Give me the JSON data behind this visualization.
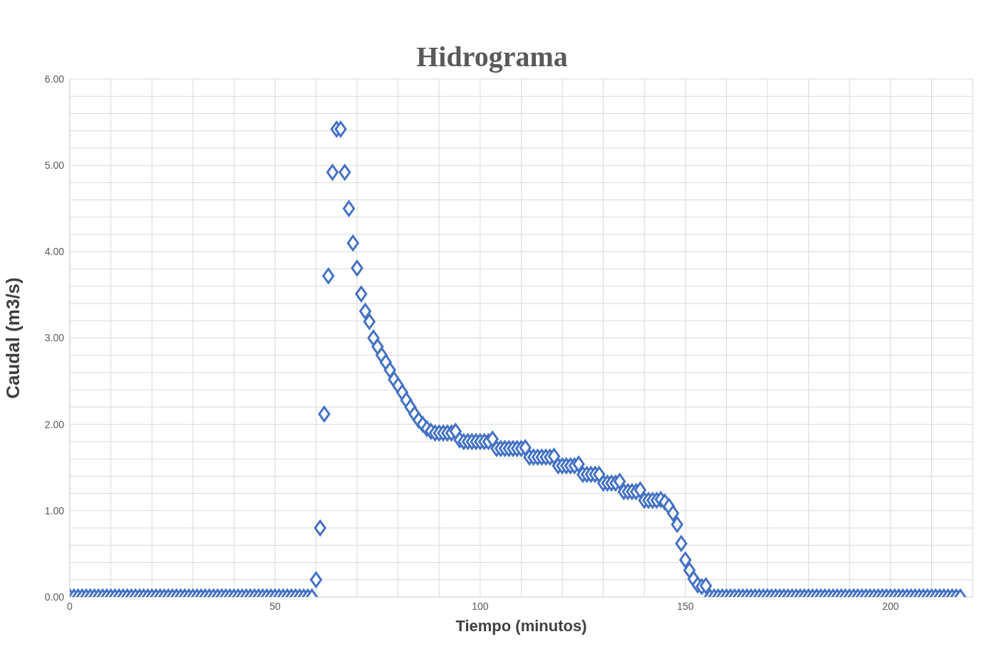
{
  "chart_data": {
    "type": "scatter",
    "title": "Hidrograma",
    "xlabel": "Tiempo (minutos)",
    "ylabel": "Caudal (m3/s)",
    "x": [
      0,
      1,
      2,
      3,
      4,
      5,
      6,
      7,
      8,
      9,
      10,
      11,
      12,
      13,
      14,
      15,
      16,
      17,
      18,
      19,
      20,
      21,
      22,
      23,
      24,
      25,
      26,
      27,
      28,
      29,
      30,
      31,
      32,
      33,
      34,
      35,
      36,
      37,
      38,
      39,
      40,
      41,
      42,
      43,
      44,
      45,
      46,
      47,
      48,
      49,
      50,
      51,
      52,
      53,
      54,
      55,
      56,
      57,
      58,
      59,
      60,
      61,
      62,
      63,
      64,
      65,
      66,
      67,
      68,
      69,
      70,
      71,
      72,
      73,
      74,
      75,
      76,
      77,
      78,
      79,
      80,
      81,
      82,
      83,
      84,
      85,
      86,
      87,
      88,
      89,
      90,
      91,
      92,
      93,
      94,
      95,
      96,
      97,
      98,
      99,
      100,
      101,
      102,
      103,
      104,
      105,
      106,
      107,
      108,
      109,
      110,
      111,
      112,
      113,
      114,
      115,
      116,
      117,
      118,
      119,
      120,
      121,
      122,
      123,
      124,
      125,
      126,
      127,
      128,
      129,
      130,
      131,
      132,
      133,
      134,
      135,
      136,
      137,
      138,
      139,
      140,
      141,
      142,
      143,
      144,
      145,
      146,
      147,
      148,
      149,
      150,
      151,
      152,
      153,
      154,
      155,
      156,
      157,
      158,
      159,
      160,
      161,
      162,
      163,
      164,
      165,
      166,
      167,
      168,
      169,
      170,
      171,
      172,
      173,
      174,
      175,
      176,
      177,
      178,
      179,
      180,
      181,
      182,
      183,
      184,
      185,
      186,
      187,
      188,
      189,
      190,
      191,
      192,
      193,
      194,
      195,
      196,
      197,
      198,
      199,
      200,
      201,
      202,
      203,
      204,
      205,
      206,
      207,
      208,
      209,
      210,
      211,
      212,
      213,
      214,
      215,
      216,
      217
    ],
    "series": [
      {
        "color": "#4472c4",
        "values": [
          0,
          0,
          0,
          0,
          0,
          0,
          0,
          0,
          0,
          0,
          0,
          0,
          0,
          0,
          0,
          0,
          0,
          0,
          0,
          0,
          0,
          0,
          0,
          0,
          0,
          0,
          0,
          0,
          0,
          0,
          0,
          0,
          0,
          0,
          0,
          0,
          0,
          0,
          0,
          0,
          0,
          0,
          0,
          0,
          0,
          0,
          0,
          0,
          0,
          0,
          0,
          0,
          0,
          0,
          0,
          0,
          0,
          0,
          0,
          0,
          0.2,
          0.8,
          2.12,
          3.72,
          4.92,
          5.42,
          5.42,
          4.92,
          4.5,
          4.1,
          3.81,
          3.51,
          3.31,
          3.19,
          3.0,
          2.9,
          2.8,
          2.72,
          2.63,
          2.52,
          2.45,
          2.37,
          2.28,
          2.2,
          2.12,
          2.05,
          2.0,
          1.95,
          1.92,
          1.9,
          1.9,
          1.9,
          1.9,
          1.9,
          1.92,
          1.82,
          1.8,
          1.8,
          1.8,
          1.8,
          1.8,
          1.8,
          1.8,
          1.83,
          1.72,
          1.72,
          1.72,
          1.72,
          1.72,
          1.72,
          1.72,
          1.73,
          1.62,
          1.62,
          1.62,
          1.62,
          1.62,
          1.62,
          1.63,
          1.52,
          1.52,
          1.52,
          1.52,
          1.52,
          1.54,
          1.42,
          1.42,
          1.42,
          1.42,
          1.42,
          1.32,
          1.32,
          1.32,
          1.32,
          1.34,
          1.22,
          1.22,
          1.22,
          1.22,
          1.24,
          1.12,
          1.12,
          1.12,
          1.12,
          1.13,
          1.1,
          1.05,
          0.97,
          0.84,
          0.62,
          0.43,
          0.31,
          0.21,
          0.14,
          0.12,
          0.13,
          0,
          0,
          0,
          0,
          0,
          0,
          0,
          0,
          0,
          0,
          0,
          0,
          0,
          0,
          0,
          0,
          0,
          0,
          0,
          0,
          0,
          0,
          0,
          0,
          0,
          0,
          0,
          0,
          0,
          0,
          0,
          0,
          0,
          0,
          0,
          0,
          0,
          0,
          0,
          0,
          0,
          0,
          0,
          0,
          0,
          0,
          0,
          0,
          0,
          0,
          0,
          0,
          0,
          0,
          0,
          0,
          0,
          0,
          0,
          0,
          0,
          0
        ]
      }
    ],
    "xlim": [
      0,
      220
    ],
    "xticks": [
      0,
      {
        "value": 10,
        "label": null
      },
      {
        "value": 20,
        "label": null
      },
      {
        "value": 30,
        "label": null
      },
      {
        "value": 40,
        "label": null
      },
      50,
      {
        "value": 60,
        "label": null
      },
      {
        "value": 70,
        "label": null
      },
      {
        "value": 80,
        "label": null
      },
      {
        "value": 90,
        "label": null
      },
      100,
      {
        "value": 110,
        "label": null
      },
      {
        "value": 120,
        "label": null
      },
      {
        "value": 130,
        "label": null
      },
      {
        "value": 140,
        "label": null
      },
      150,
      {
        "value": 160,
        "label": null
      },
      {
        "value": 170,
        "label": null
      },
      {
        "value": 180,
        "label": null
      },
      {
        "value": 190,
        "label": null
      },
      200,
      {
        "value": 210,
        "label": null
      },
      {
        "value": 220,
        "label": null
      }
    ],
    "ylim": [
      0,
      6
    ],
    "yticks": [
      {
        "value": 0,
        "label": "0.00"
      },
      {
        "value": 0.2,
        "label": null
      },
      {
        "value": 0.4,
        "label": null
      },
      {
        "value": 0.6,
        "label": null
      },
      {
        "value": 0.8,
        "label": null
      },
      {
        "value": 1,
        "label": "1.00"
      },
      {
        "value": 1.2,
        "label": null
      },
      {
        "value": 1.4,
        "label": null
      },
      {
        "value": 1.6,
        "label": null
      },
      {
        "value": 1.8,
        "label": null
      },
      {
        "value": 2,
        "label": "2.00"
      },
      {
        "value": 2.2,
        "label": null
      },
      {
        "value": 2.4,
        "label": null
      },
      {
        "value": 2.6,
        "label": null
      },
      {
        "value": 2.8,
        "label": null
      },
      {
        "value": 3,
        "label": "3.00"
      },
      {
        "value": 3.2,
        "label": null
      },
      {
        "value": 3.4,
        "label": null
      },
      {
        "value": 3.6,
        "label": null
      },
      {
        "value": 3.8,
        "label": null
      },
      {
        "value": 4,
        "label": "4.00"
      },
      {
        "value": 4.2,
        "label": null
      },
      {
        "value": 4.4,
        "label": null
      },
      {
        "value": 4.6,
        "label": null
      },
      {
        "value": 4.8,
        "label": null
      },
      {
        "value": 5,
        "label": "5.00"
      },
      {
        "value": 5.2,
        "label": null
      },
      {
        "value": 5.4,
        "label": null
      },
      {
        "value": 5.6,
        "label": null
      },
      {
        "value": 5.8,
        "label": null
      },
      {
        "value": 6,
        "label": "6.00"
      }
    ],
    "grid": true,
    "marker": "diamond",
    "legend": false
  }
}
